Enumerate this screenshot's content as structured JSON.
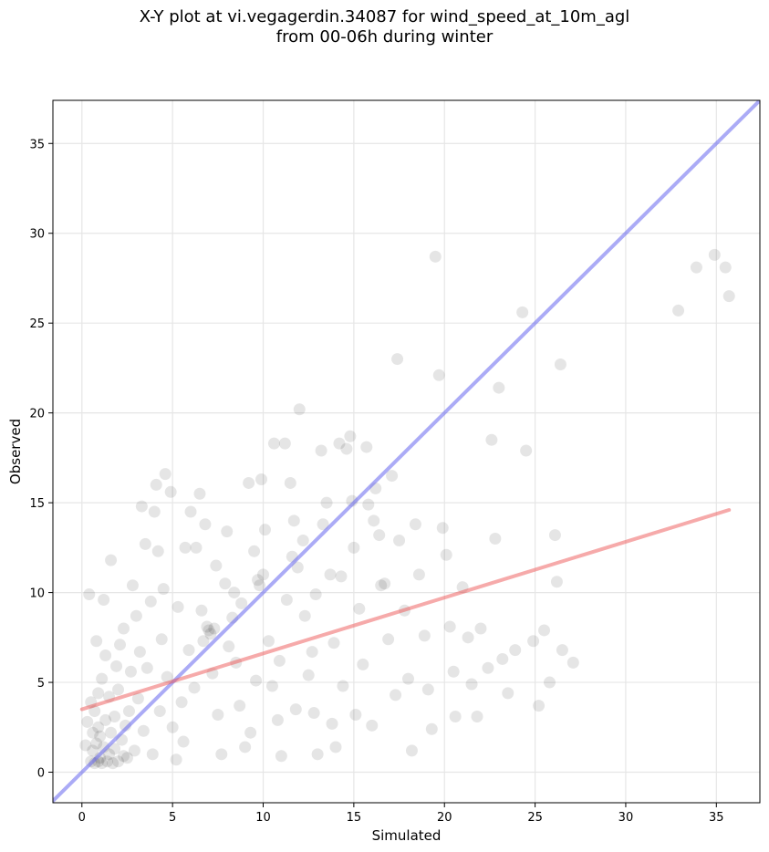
{
  "chart_data": {
    "type": "scatter",
    "title": [
      "X-Y plot at vi.vegagerdin.34087 for wind_speed_at_10m_agl",
      "from 00-06h during winter"
    ],
    "xlabel": "Simulated",
    "ylabel": "Observed",
    "xlim": [
      -1.6,
      37.4
    ],
    "ylim": [
      -1.7,
      37.4
    ],
    "xticks": [
      0,
      5,
      10,
      15,
      20,
      25,
      30,
      35
    ],
    "yticks": [
      0,
      5,
      10,
      15,
      20,
      25,
      30,
      35
    ],
    "grid": true,
    "series": [
      {
        "kind": "points",
        "color": "#000000",
        "opacity": 0.1,
        "points": [
          [
            0.5,
            0.6
          ],
          [
            0.7,
            0.5
          ],
          [
            0.9,
            0.6
          ],
          [
            1.1,
            0.5
          ],
          [
            1.4,
            0.6
          ],
          [
            1.7,
            0.5
          ],
          [
            2.0,
            0.6
          ],
          [
            0.6,
            1.2
          ],
          [
            0.8,
            1.6
          ],
          [
            1.0,
            2.0
          ],
          [
            1.2,
            1.4
          ],
          [
            0.9,
            2.5
          ],
          [
            1.3,
            2.9
          ],
          [
            0.7,
            3.4
          ],
          [
            1.6,
            2.2
          ],
          [
            1.8,
            3.1
          ],
          [
            2.2,
            1.8
          ],
          [
            2.4,
            2.6
          ],
          [
            1.5,
            4.2
          ],
          [
            2.0,
            4.6
          ],
          [
            0.3,
            2.8
          ],
          [
            0.2,
            1.5
          ],
          [
            0.5,
            3.9
          ],
          [
            1.1,
            5.2
          ],
          [
            2.6,
            3.4
          ],
          [
            2.9,
            1.2
          ],
          [
            3.1,
            4.1
          ],
          [
            3.4,
            2.3
          ],
          [
            2.7,
            5.6
          ],
          [
            1.9,
            5.9
          ],
          [
            0.4,
            9.9
          ],
          [
            0.8,
            7.3
          ],
          [
            1.6,
            11.8
          ],
          [
            1.2,
            9.6
          ],
          [
            2.3,
            8.0
          ],
          [
            3.2,
            6.7
          ],
          [
            3.5,
            12.7
          ],
          [
            3.3,
            14.8
          ],
          [
            4.0,
            14.5
          ],
          [
            4.1,
            16.0
          ],
          [
            4.6,
            16.6
          ],
          [
            4.9,
            15.6
          ],
          [
            4.2,
            12.3
          ],
          [
            3.8,
            9.5
          ],
          [
            4.4,
            7.4
          ],
          [
            4.7,
            5.3
          ],
          [
            5.0,
            2.5
          ],
          [
            5.2,
            0.7
          ],
          [
            5.5,
            3.9
          ],
          [
            5.3,
            9.2
          ],
          [
            5.7,
            12.5
          ],
          [
            6.0,
            14.5
          ],
          [
            6.3,
            12.5
          ],
          [
            6.5,
            15.5
          ],
          [
            6.8,
            13.8
          ],
          [
            7.0,
            7.9
          ],
          [
            7.2,
            5.5
          ],
          [
            7.5,
            3.2
          ],
          [
            7.7,
            1.0
          ],
          [
            7.9,
            10.5
          ],
          [
            8.0,
            13.4
          ],
          [
            8.3,
            8.6
          ],
          [
            8.5,
            6.1
          ],
          [
            8.7,
            3.7
          ],
          [
            9.0,
            1.4
          ],
          [
            9.2,
            16.1
          ],
          [
            9.5,
            12.3
          ],
          [
            9.7,
            10.7
          ],
          [
            9.9,
            16.3
          ],
          [
            10.1,
            13.5
          ],
          [
            10.3,
            7.3
          ],
          [
            10.5,
            4.8
          ],
          [
            10.8,
            2.9
          ],
          [
            11.0,
            0.9
          ],
          [
            11.2,
            18.3
          ],
          [
            10.6,
            18.3
          ],
          [
            11.5,
            16.1
          ],
          [
            11.7,
            14.0
          ],
          [
            11.9,
            11.4
          ],
          [
            12.0,
            20.2
          ],
          [
            12.3,
            8.7
          ],
          [
            12.5,
            5.4
          ],
          [
            12.8,
            3.3
          ],
          [
            13.0,
            1.0
          ],
          [
            13.2,
            17.9
          ],
          [
            13.5,
            15.0
          ],
          [
            13.7,
            11.0
          ],
          [
            13.9,
            7.2
          ],
          [
            14.2,
            18.3
          ],
          [
            14.4,
            4.8
          ],
          [
            14.6,
            18.0
          ],
          [
            14.8,
            18.7
          ],
          [
            15.0,
            12.5
          ],
          [
            15.3,
            9.1
          ],
          [
            15.5,
            6.0
          ],
          [
            15.7,
            18.1
          ],
          [
            16.0,
            2.6
          ],
          [
            16.2,
            15.8
          ],
          [
            16.4,
            13.2
          ],
          [
            16.7,
            10.5
          ],
          [
            16.9,
            7.4
          ],
          [
            17.1,
            16.5
          ],
          [
            17.3,
            4.3
          ],
          [
            17.5,
            12.9
          ],
          [
            17.8,
            9.0
          ],
          [
            18.0,
            5.2
          ],
          [
            18.2,
            1.2
          ],
          [
            18.4,
            13.8
          ],
          [
            18.6,
            11.0
          ],
          [
            18.9,
            7.6
          ],
          [
            19.1,
            4.6
          ],
          [
            19.3,
            2.4
          ],
          [
            19.5,
            28.7
          ],
          [
            19.7,
            22.1
          ],
          [
            19.9,
            13.6
          ],
          [
            20.1,
            12.1
          ],
          [
            20.3,
            8.1
          ],
          [
            20.5,
            5.6
          ],
          [
            20.6,
            3.1
          ],
          [
            21.0,
            10.3
          ],
          [
            21.3,
            7.5
          ],
          [
            21.5,
            4.9
          ],
          [
            21.8,
            3.1
          ],
          [
            22.0,
            8.0
          ],
          [
            22.4,
            5.8
          ],
          [
            22.6,
            18.5
          ],
          [
            22.8,
            13.0
          ],
          [
            23.0,
            21.4
          ],
          [
            23.2,
            6.3
          ],
          [
            23.5,
            4.4
          ],
          [
            23.9,
            6.8
          ],
          [
            24.3,
            25.6
          ],
          [
            24.5,
            17.9
          ],
          [
            24.9,
            7.3
          ],
          [
            25.2,
            3.7
          ],
          [
            25.5,
            7.9
          ],
          [
            25.8,
            5.0
          ],
          [
            26.1,
            13.2
          ],
          [
            26.2,
            10.6
          ],
          [
            26.4,
            22.7
          ],
          [
            26.5,
            6.8
          ],
          [
            27.1,
            6.1
          ],
          [
            17.4,
            23.0
          ],
          [
            16.5,
            10.4
          ],
          [
            15.1,
            3.2
          ],
          [
            14.0,
            1.4
          ],
          [
            13.8,
            2.7
          ],
          [
            12.7,
            6.7
          ],
          [
            11.8,
            3.5
          ],
          [
            11.3,
            9.6
          ],
          [
            10.9,
            6.2
          ],
          [
            9.6,
            5.1
          ],
          [
            9.3,
            2.2
          ],
          [
            8.8,
            9.4
          ],
          [
            8.1,
            7.0
          ],
          [
            7.4,
            11.5
          ],
          [
            6.6,
            9.0
          ],
          [
            6.2,
            4.7
          ],
          [
            5.9,
            6.8
          ],
          [
            5.6,
            1.7
          ],
          [
            4.5,
            10.2
          ],
          [
            4.3,
            3.4
          ],
          [
            3.9,
            1.0
          ],
          [
            3.6,
            5.8
          ],
          [
            3.0,
            8.7
          ],
          [
            2.8,
            10.4
          ],
          [
            2.5,
            0.8
          ],
          [
            2.1,
            7.1
          ],
          [
            1.3,
            6.5
          ],
          [
            0.9,
            4.4
          ],
          [
            32.9,
            25.7
          ],
          [
            33.9,
            28.1
          ],
          [
            34.9,
            28.8
          ],
          [
            35.5,
            28.1
          ],
          [
            35.7,
            26.5
          ],
          [
            6.9,
            8.1
          ],
          [
            7.1,
            7.7
          ],
          [
            6.7,
            7.3
          ],
          [
            7.3,
            8.0
          ],
          [
            1.0,
            0.8
          ],
          [
            1.5,
            1.0
          ],
          [
            0.6,
            2.2
          ],
          [
            2.3,
            0.9
          ],
          [
            1.8,
            1.3
          ],
          [
            12.2,
            12.9
          ],
          [
            14.9,
            15.1
          ],
          [
            15.8,
            14.9
          ],
          [
            16.1,
            14.0
          ],
          [
            13.3,
            13.8
          ],
          [
            10.0,
            11.0
          ],
          [
            8.4,
            10.0
          ],
          [
            9.8,
            10.4
          ],
          [
            11.6,
            12.0
          ],
          [
            12.9,
            9.9
          ],
          [
            14.3,
            10.9
          ]
        ]
      },
      {
        "kind": "line",
        "name": "",
        "color": "#6666ee",
        "opacity": 0.55,
        "points": [
          [
            -1.6,
            -1.6
          ],
          [
            37.4,
            37.4
          ]
        ]
      },
      {
        "kind": "line",
        "name": "",
        "color": "#ee5555",
        "opacity": 0.5,
        "points": [
          [
            0.0,
            3.5
          ],
          [
            35.7,
            14.6
          ]
        ]
      }
    ]
  }
}
